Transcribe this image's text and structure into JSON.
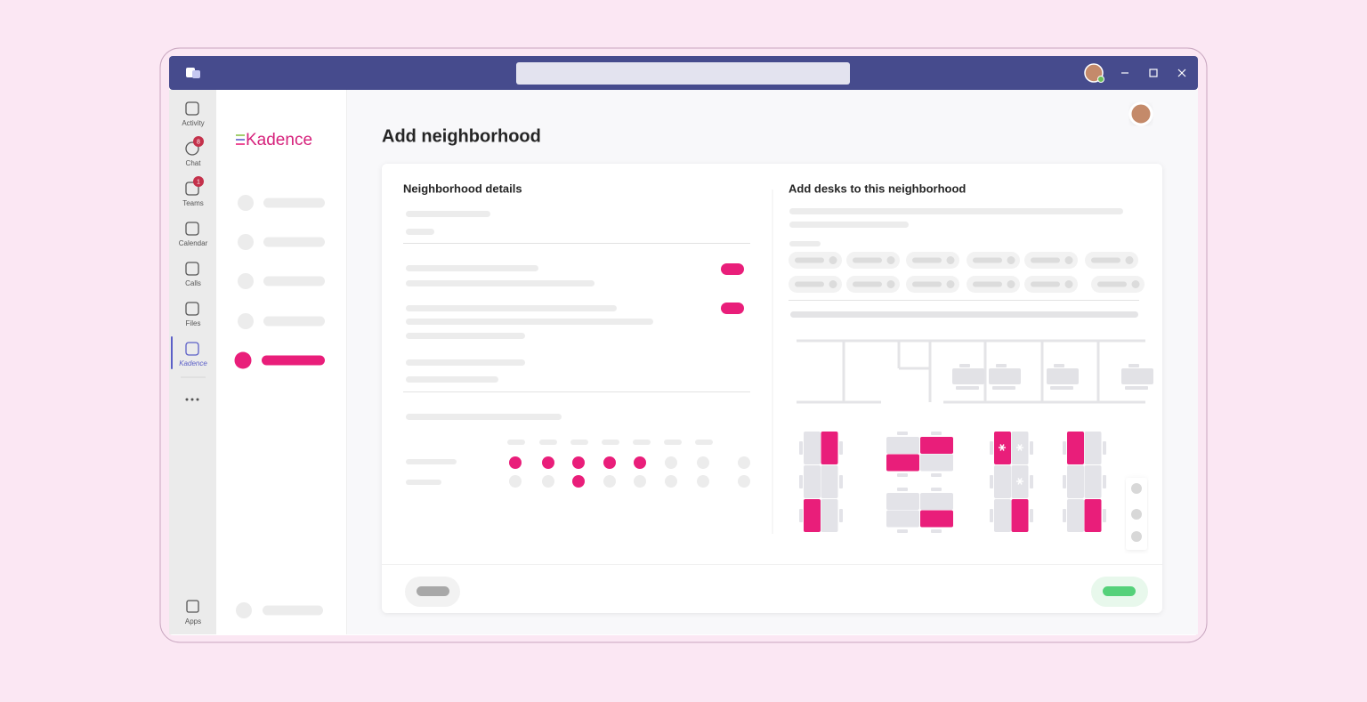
{
  "app": {
    "nav": [
      {
        "label": "Activity"
      },
      {
        "label": "Chat",
        "badge": 8
      },
      {
        "label": "Teams",
        "badge": 1
      },
      {
        "label": "Calendar"
      },
      {
        "label": "Calls"
      },
      {
        "label": "Files"
      },
      {
        "label": "Kadence"
      }
    ],
    "apps": "Apps"
  },
  "sidebar": {
    "logo": "Kadence"
  },
  "page": {
    "title": "Add neighborhood",
    "details_heading": "Neighborhood details",
    "desks_heading": "Add desks to this neighborhood"
  }
}
